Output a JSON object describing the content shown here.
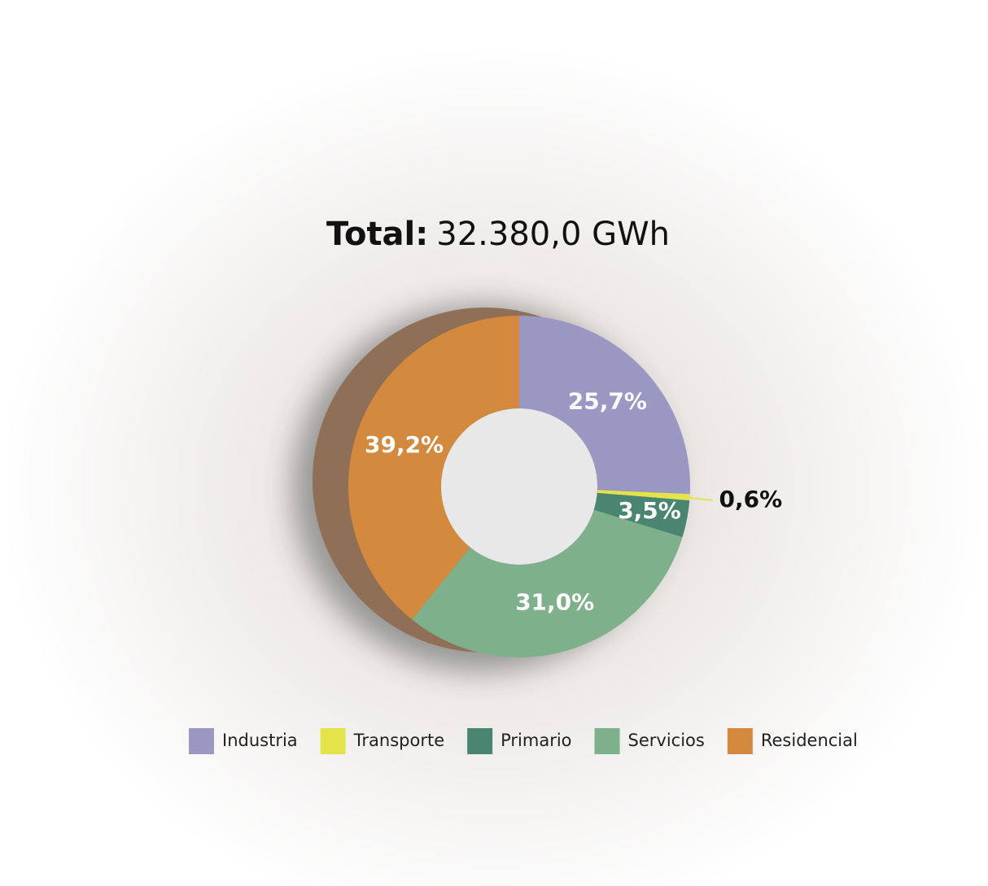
{
  "chart_data": {
    "type": "donut",
    "title": "Total:",
    "subtitle": "32.380,0 GWh",
    "categories": [
      "Industria",
      "Transporte",
      "Primario",
      "Servicios",
      "Residencial"
    ],
    "values": [
      25.7,
      0.6,
      3.5,
      31.0,
      39.2
    ],
    "value_labels": [
      "25,7%",
      "0,6%",
      "3,5%",
      "31,0%",
      "39,2%"
    ],
    "colors": [
      "#9a97c2",
      "#e5e34a",
      "#4a8572",
      "#7fb08c",
      "#d48a3e"
    ],
    "legend": "bottom"
  }
}
